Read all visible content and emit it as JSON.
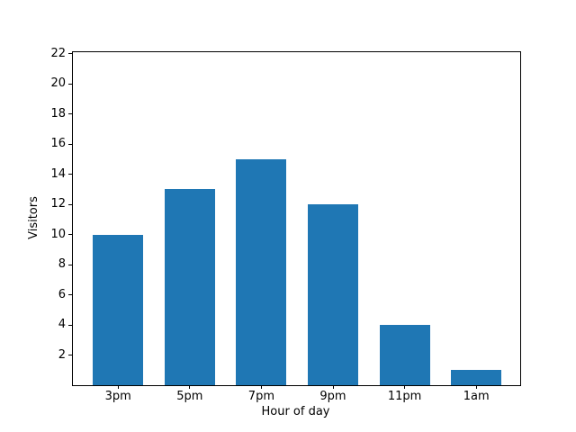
{
  "chart_data": {
    "type": "bar",
    "xlabel": "Hour of day",
    "ylabel": "Visitors",
    "categories": [
      "3pm",
      "5pm",
      "7pm",
      "9pm",
      "11pm",
      "1am"
    ],
    "values": [
      10,
      13,
      15,
      12,
      4,
      1
    ],
    "yticks": [
      2,
      4,
      6,
      8,
      10,
      12,
      14,
      16,
      18,
      20,
      22
    ],
    "ylim": [
      0,
      22.1
    ],
    "bar_color": "#1f77b4",
    "spine_color": "#000000",
    "background": "#ffffff",
    "grid": false,
    "legend": null
  }
}
